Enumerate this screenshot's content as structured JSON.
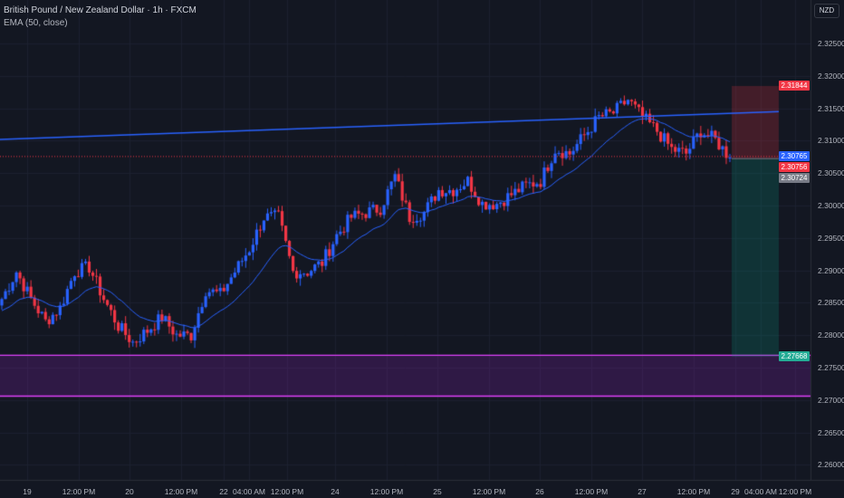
{
  "header": {
    "symbol_title": "British Pound / New Zealand Dollar · 1h · FXCM",
    "indicator": "EMA (50, close)"
  },
  "currency_button": "NZD",
  "price_axis": [
    "2.32500",
    "2.32000",
    "2.31500",
    "2.31000",
    "2.30500",
    "2.30000",
    "2.29500",
    "2.29000",
    "2.28500",
    "2.28000",
    "2.27500",
    "2.27000",
    "2.26500",
    "2.26000"
  ],
  "price_labels": [
    {
      "text": "2.31844",
      "price": 2.31844,
      "color": "#f23645"
    },
    {
      "text": "2.30765",
      "price": 2.30765,
      "color": "#2962ff"
    },
    {
      "text": "2.30756",
      "price": 2.30756,
      "color": "#f23645"
    },
    {
      "text": "2.30724",
      "price": 2.30724,
      "color": "#787b86"
    },
    {
      "text": "2.27668",
      "price": 2.27668,
      "color": "#22ab94"
    }
  ],
  "time_axis": [
    "19",
    "12:00 PM",
    "20",
    "12:00 PM",
    "22",
    "04:00 AM",
    "12:00 PM",
    "24",
    "12:00 PM",
    "25",
    "12:00 PM",
    "26",
    "12:00 PM",
    "27",
    "12:00 PM",
    "29",
    "04:00 AM",
    "12:00 PM"
  ],
  "colors": {
    "up": "#2962ff",
    "down": "#f23645",
    "ema": "#2962ff",
    "trendline": "#2962ff",
    "zone": "#e040fb"
  },
  "chart_data": {
    "type": "candlestick",
    "closes": [
      2.2856,
      2.2898,
      2.2856,
      2.2821,
      2.2842,
      2.2898,
      2.2905,
      2.2856,
      2.2814,
      2.2789,
      2.2807,
      2.2828,
      2.28,
      2.28,
      2.287,
      2.2863,
      2.2898,
      2.2933,
      2.2982,
      2.2982,
      2.2898,
      2.2898,
      2.2912,
      2.2954,
      2.2982,
      2.2989,
      2.2996,
      2.3045,
      2.2982,
      2.2989,
      2.3024,
      2.3024,
      2.3038,
      2.3003,
      2.3003,
      2.3017,
      2.3031,
      2.3038,
      2.3087,
      2.308,
      2.3108,
      2.3136,
      2.3143,
      2.3163,
      2.3136,
      2.3115,
      2.3087,
      2.308,
      2.3115,
      2.3101,
      2.3074
    ],
    "ema_period": 50,
    "trendline": {
      "start": 2.3102,
      "end": 2.3145
    },
    "support_zone": [
      2.2706,
      2.2769
    ],
    "position": {
      "stop": 2.31844,
      "entry": 2.30724,
      "target": 2.27668
    }
  }
}
